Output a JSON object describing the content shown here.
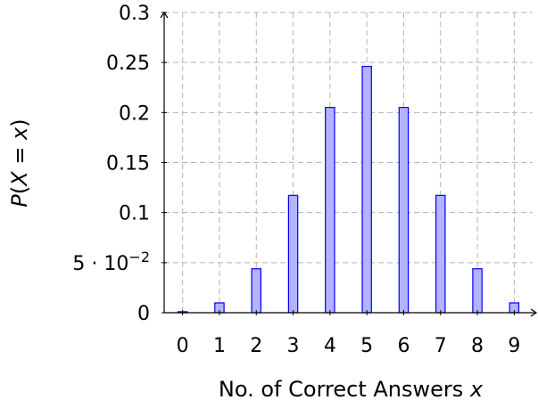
{
  "chart_data": {
    "type": "bar",
    "x": [
      0,
      1,
      2,
      3,
      4,
      5,
      6,
      7,
      8,
      9
    ],
    "values": [
      0.001,
      0.0098,
      0.0439,
      0.1172,
      0.2051,
      0.2461,
      0.2051,
      0.1172,
      0.0439,
      0.0098
    ],
    "xlabel": "No. of Correct Answers x",
    "ylabel": "P(X = x)",
    "ylim": [
      0,
      0.3
    ],
    "xlim": [
      -0.5,
      9.5
    ],
    "yticks": [
      {
        "value": 0,
        "label": "0"
      },
      {
        "value": 0.05,
        "label": "5 · 10−2"
      },
      {
        "value": 0.1,
        "label": "0.1"
      },
      {
        "value": 0.15,
        "label": "0.15"
      },
      {
        "value": 0.2,
        "label": "0.2"
      },
      {
        "value": 0.25,
        "label": "0.25"
      },
      {
        "value": 0.3,
        "label": "0.3"
      }
    ],
    "xticks": [
      "0",
      "1",
      "2",
      "3",
      "4",
      "5",
      "6",
      "7",
      "8",
      "9"
    ],
    "grid": true,
    "colors": {
      "bar_fill": "#b3b3ff",
      "bar_stroke": "#0000ff",
      "grid": "#b3b3b3"
    }
  }
}
